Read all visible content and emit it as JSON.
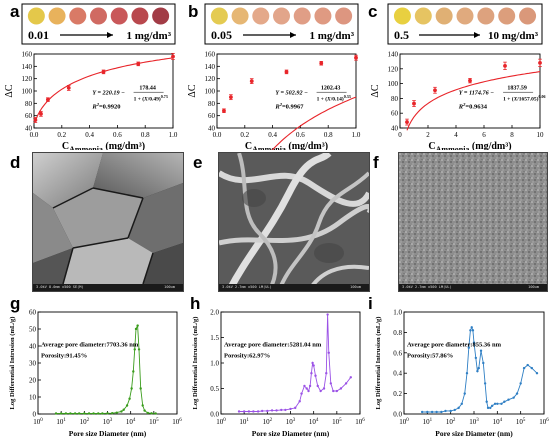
{
  "panel_labels": [
    "a",
    "b",
    "c",
    "d",
    "e",
    "f",
    "g",
    "h",
    "i"
  ],
  "colors": {
    "fit_line": "#e8252a",
    "points": "#e8252a",
    "g_series": "#3a9c1c",
    "h_series": "#9b52e6",
    "i_series": "#2f7fc4"
  },
  "swatches": {
    "a": [
      "#e4c84a",
      "#e8b25c",
      "#d97a66",
      "#d06a62",
      "#c9585a",
      "#b9484e",
      "#a23c46"
    ],
    "b": [
      "#e4cb52",
      "#e6b774",
      "#e4a98a",
      "#e2a58a",
      "#e09e86",
      "#df9a82",
      "#dd9680"
    ],
    "c": [
      "#e8d040",
      "#e6c462",
      "#e0b074",
      "#e0aa7e",
      "#dda27e",
      "#dc9e7c",
      "#da987a"
    ]
  },
  "ranges": {
    "a": {
      "low": "0.01",
      "high": "1 mg/dm³"
    },
    "b": {
      "low": "0.05",
      "high": "1 mg/dm³"
    },
    "c": {
      "low": "0.5",
      "high": "10 mg/dm³"
    }
  },
  "chart_data": [
    {
      "panel": "a",
      "type": "scatter",
      "xlabel_main": "C",
      "xlabel_sub": "Ammonia",
      "xlabel_unit": " (mg/dm³)",
      "ylabel": "ΔC",
      "xlim": [
        0,
        1.0
      ],
      "ylim": [
        40,
        160
      ],
      "xticks": [
        "0.0",
        "0.2",
        "0.4",
        "0.6",
        "0.8",
        "1.0"
      ],
      "yticks": [
        "40",
        "60",
        "80",
        "100",
        "120",
        "140",
        "160"
      ],
      "x": [
        0.01,
        0.05,
        0.1,
        0.25,
        0.5,
        0.75,
        1.0
      ],
      "y": [
        53,
        63,
        86,
        105,
        131,
        144,
        156
      ],
      "err": [
        4,
        4,
        3,
        4,
        3,
        3,
        5
      ],
      "fit": {
        "Y0": 220.19,
        "A": 178.44,
        "x0": 0.49,
        "p": 0.73
      },
      "equation": {
        "lhs": "Y = 220.19 −",
        "num": "178.44",
        "den_pre": "1 + (",
        "frac_num": "X",
        "frac_den": "0.49",
        "den_post": ")",
        "exp": "0.73",
        "r2_label": "R",
        "r2_value": "=0.9920"
      }
    },
    {
      "panel": "b",
      "type": "scatter",
      "xlabel_main": "C",
      "xlabel_sub": "Ammonia",
      "xlabel_unit": " (mg/dm³)",
      "ylabel": "ΔC",
      "xlim": [
        0,
        1.0
      ],
      "ylim": [
        40,
        160
      ],
      "xticks": [
        "0.0",
        "0.2",
        "0.4",
        "0.6",
        "0.8",
        "1.0"
      ],
      "yticks": [
        "40",
        "60",
        "80",
        "100",
        "120",
        "140",
        "160"
      ],
      "x": [
        0.05,
        0.1,
        0.25,
        0.5,
        0.75,
        1.0
      ],
      "y": [
        68,
        90,
        116,
        131,
        145,
        154
      ],
      "err": [
        3,
        4,
        4,
        3,
        3,
        4
      ],
      "fit": {
        "Y0": 502.92,
        "A": 1202.43,
        "x0": 0.14,
        "p": 0.33
      },
      "equation": {
        "lhs": "Y = 502.92 −",
        "num": "1202.43",
        "den_pre": "1 + (",
        "frac_num": "X",
        "frac_den": "0.14",
        "den_post": ")",
        "exp": "0.33",
        "r2_label": "R",
        "r2_value": "=0.9967"
      }
    },
    {
      "panel": "c",
      "type": "scatter",
      "xlabel_main": "C",
      "xlabel_sub": "Ammonia",
      "xlabel_unit": " (mg/dm³)",
      "ylabel": "ΔC",
      "xlim": [
        0,
        10
      ],
      "ylim": [
        40,
        140
      ],
      "xticks": [
        "0",
        "2",
        "4",
        "6",
        "8",
        "10"
      ],
      "yticks": [
        "40",
        "60",
        "80",
        "100",
        "120",
        "140"
      ],
      "x": [
        0.5,
        1,
        2.5,
        5,
        7.5,
        10
      ],
      "y": [
        48,
        73,
        91,
        104,
        124,
        128
      ],
      "err": [
        4,
        4,
        4,
        3,
        5,
        5
      ],
      "fit": {
        "Y0": 1174.76,
        "A": 1837.59,
        "x0": 1657.05,
        "p": 0.06
      },
      "equation": {
        "lhs": "Y = 1174.76 −",
        "num": "1837.59",
        "den_pre": "1 + (",
        "frac_num": "X",
        "frac_den": "1657.05",
        "den_post": ")",
        "exp": "0.06",
        "r2_label": "R",
        "r2_value": "=0.9634"
      }
    },
    {
      "panel": "g",
      "type": "line",
      "xscale": "log",
      "xlim": [
        1,
        1000000
      ],
      "ylim": [
        0,
        60
      ],
      "xlabel": "Pore size Diameter (nm)",
      "ylabel": "Log Differential Intrusion (mL/g)",
      "xtick_exps": [
        0,
        1,
        2,
        3,
        4,
        5,
        6
      ],
      "yticks": [
        "0",
        "10",
        "20",
        "30",
        "40",
        "50",
        "60"
      ],
      "annotation": [
        "Average pore diameter:7703.36 nm",
        "Porosity:91.45%"
      ],
      "x": [
        6,
        10,
        16,
        25,
        40,
        60,
        100,
        160,
        250,
        400,
        600,
        1000,
        1600,
        2500,
        4000,
        5000,
        7000,
        9000,
        11000,
        13000,
        15000,
        17000,
        20000,
        23000,
        27000,
        33000,
        40000,
        55000,
        80000,
        120000
      ],
      "y": [
        0.3,
        0.3,
        0.3,
        0.3,
        0.3,
        0.3,
        0.3,
        0.3,
        0.3,
        0.3,
        0.3,
        0.4,
        0.5,
        0.8,
        1.5,
        2.5,
        5,
        9,
        15,
        25,
        38,
        50,
        52,
        38,
        15,
        5,
        2,
        0.6,
        0.4,
        0.3
      ]
    },
    {
      "panel": "h",
      "type": "line",
      "xscale": "log",
      "xlim": [
        1,
        1000000
      ],
      "ylim": [
        0,
        2.0
      ],
      "xlabel": "Pore size Diameter (nm)",
      "ylabel": "Log Differential Intrusion (mL/g)",
      "xtick_exps": [
        0,
        1,
        2,
        3,
        4,
        5,
        6
      ],
      "yticks": [
        "0.0",
        "0.5",
        "1.0",
        "1.5",
        "2.0"
      ],
      "annotation": [
        "Average pore diameter:5281.04 nm",
        "Porosity:62.97%"
      ],
      "x": [
        6,
        10,
        16,
        25,
        40,
        60,
        100,
        160,
        250,
        400,
        600,
        1000,
        1600,
        2500,
        3000,
        4000,
        5000,
        6000,
        7000,
        8000,
        9000,
        10000,
        12000,
        15000,
        20000,
        28000,
        35000,
        40000,
        45000,
        55000,
        70000,
        100000,
        150000,
        250000,
        400000
      ],
      "y": [
        0.05,
        0.05,
        0.05,
        0.05,
        0.05,
        0.06,
        0.06,
        0.07,
        0.07,
        0.08,
        0.08,
        0.1,
        0.12,
        0.25,
        0.4,
        0.55,
        0.5,
        0.45,
        0.55,
        0.8,
        1.0,
        0.95,
        0.75,
        0.55,
        0.45,
        0.5,
        0.8,
        1.95,
        1.2,
        0.6,
        0.45,
        0.45,
        0.5,
        0.6,
        0.72
      ]
    },
    {
      "panel": "i",
      "type": "line",
      "xscale": "log",
      "xlim": [
        1,
        1000000
      ],
      "ylim": [
        0,
        1.0
      ],
      "xlabel": "Pore size Diameter (nm)",
      "ylabel": "Log Differential Intrusion (mL/g)",
      "xtick_exps": [
        0,
        1,
        2,
        3,
        4,
        5,
        6
      ],
      "yticks": [
        "0.0",
        "0.2",
        "0.4",
        "0.6",
        "0.8",
        "1.0"
      ],
      "annotation": [
        "Average pore diameter:855.36 nm",
        "Porosity:57.86%"
      ],
      "x": [
        6,
        10,
        16,
        25,
        40,
        60,
        100,
        150,
        220,
        300,
        400,
        500,
        600,
        700,
        800,
        900,
        1000,
        1200,
        1400,
        1600,
        2000,
        2500,
        3000,
        3500,
        4000,
        5000,
        6000,
        8000,
        10000,
        15000,
        20000,
        30000,
        50000,
        70000,
        100000,
        140000,
        200000,
        300000,
        500000
      ],
      "y": [
        0.02,
        0.02,
        0.02,
        0.02,
        0.02,
        0.03,
        0.03,
        0.04,
        0.06,
        0.1,
        0.2,
        0.4,
        0.65,
        0.82,
        0.85,
        0.82,
        0.7,
        0.55,
        0.42,
        0.45,
        0.62,
        0.5,
        0.3,
        0.12,
        0.06,
        0.06,
        0.08,
        0.1,
        0.1,
        0.1,
        0.12,
        0.14,
        0.16,
        0.2,
        0.3,
        0.45,
        0.48,
        0.45,
        0.4
      ]
    }
  ],
  "sem": {
    "d": {
      "info_left": "3.0kV 8.0mm x500 SE(M)",
      "info_right": "100um"
    },
    "e": {
      "info_left": "3.0kV 2.7mm x500 LM(UL)",
      "info_right": "100um"
    },
    "f": {
      "info_left": "3.0kV 2.7mm x500 LM(UL)",
      "info_right": "100um"
    }
  }
}
